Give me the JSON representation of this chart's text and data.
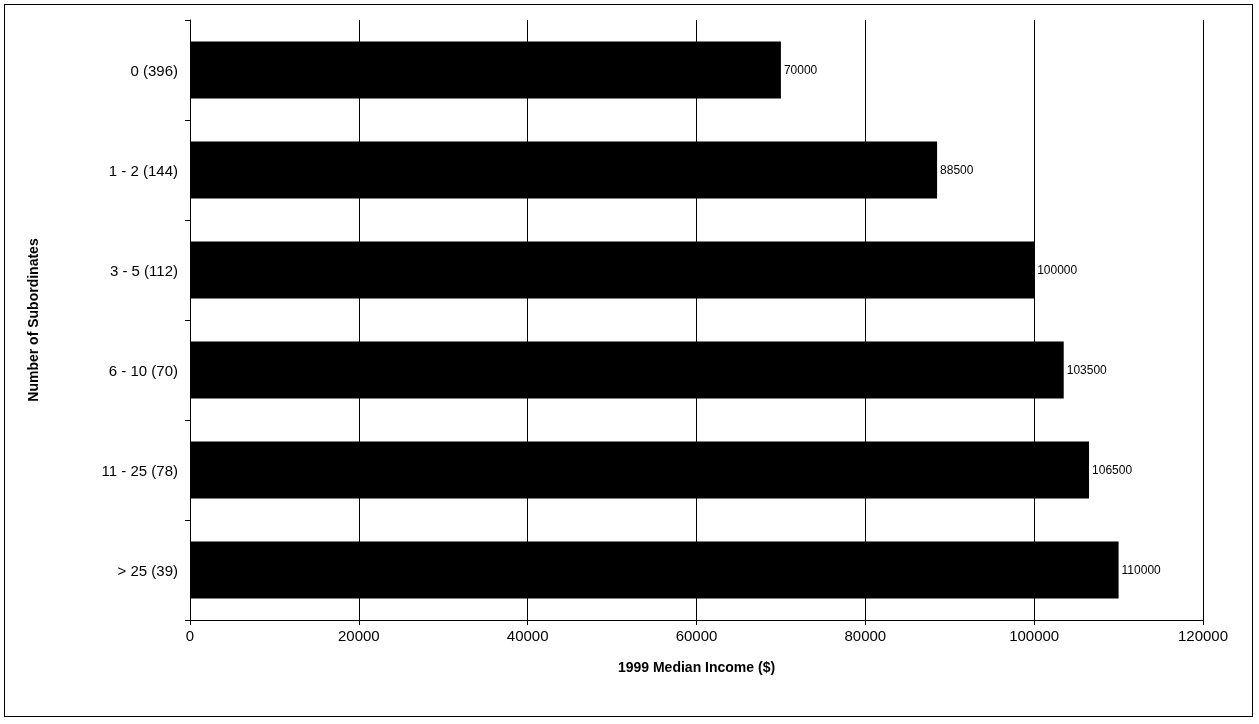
{
  "chart_data": {
    "type": "bar",
    "orientation": "horizontal",
    "xlabel": "1999 Median Income ($)",
    "ylabel": "Number of Subordinates",
    "categories": [
      "0 (396)",
      "1 - 2 (144)",
      "3 - 5 (112)",
      "6 - 10 (70)",
      "11 - 25 (78)",
      "> 25 (39)"
    ],
    "values": [
      70000,
      88500,
      100000,
      103500,
      106500,
      110000
    ],
    "color": "#000000",
    "xlim": [
      0,
      120000
    ],
    "xticks": [
      0,
      20000,
      40000,
      60000,
      80000,
      100000,
      120000
    ],
    "grid": "x",
    "data_labels": true
  }
}
